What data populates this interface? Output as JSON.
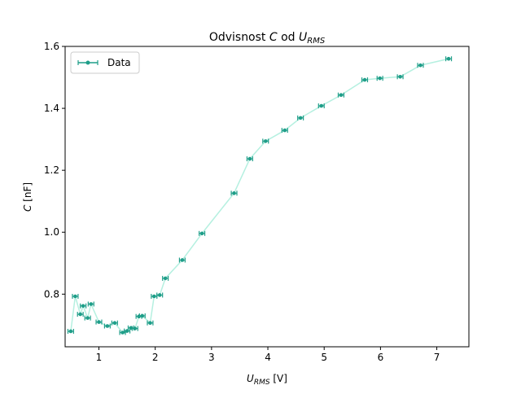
{
  "chart_data": {
    "type": "line",
    "title_main": "Odvisnost ",
    "title_var": "C",
    "title_mid": " od ",
    "title_u": "U",
    "title_sub": "RMS",
    "xlabel_var": "U",
    "xlabel_sub": "RMS",
    "xlabel_unit": " [V]",
    "ylabel_var": "C",
    "ylabel_unit": " [nF]",
    "xlim": [
      0.4,
      7.57
    ],
    "ylim": [
      0.63,
      1.6
    ],
    "xticks": [
      1,
      2,
      3,
      4,
      5,
      6,
      7
    ],
    "yticks": [
      0.8,
      1.0,
      1.2,
      1.4,
      1.6
    ],
    "xtick_labels": [
      "1",
      "2",
      "3",
      "4",
      "5",
      "6",
      "7"
    ],
    "ytick_labels": [
      "0.8",
      "1.0",
      "1.2",
      "1.4",
      "1.6"
    ],
    "legend_position": "top-left",
    "line_color": "#b5f0e0",
    "marker_color": "#1f9e89",
    "series": [
      {
        "name": "Data",
        "x": [
          0.5,
          0.58,
          0.67,
          0.72,
          0.8,
          0.86,
          1.0,
          1.15,
          1.28,
          1.42,
          1.5,
          1.57,
          1.64,
          1.71,
          1.77,
          1.91,
          1.98,
          2.08,
          2.18,
          2.48,
          2.83,
          3.4,
          3.68,
          3.96,
          4.3,
          4.58,
          4.95,
          5.3,
          5.72,
          5.99,
          6.35,
          6.71,
          7.21
        ],
        "y": [
          0.68,
          0.793,
          0.735,
          0.762,
          0.723,
          0.768,
          0.71,
          0.697,
          0.707,
          0.676,
          0.681,
          0.691,
          0.689,
          0.728,
          0.73,
          0.707,
          0.793,
          0.797,
          0.851,
          0.91,
          0.996,
          1.126,
          1.237,
          1.294,
          1.329,
          1.369,
          1.408,
          1.443,
          1.492,
          1.497,
          1.502,
          1.539,
          1.56
        ],
        "xerr": 0.05
      }
    ]
  }
}
